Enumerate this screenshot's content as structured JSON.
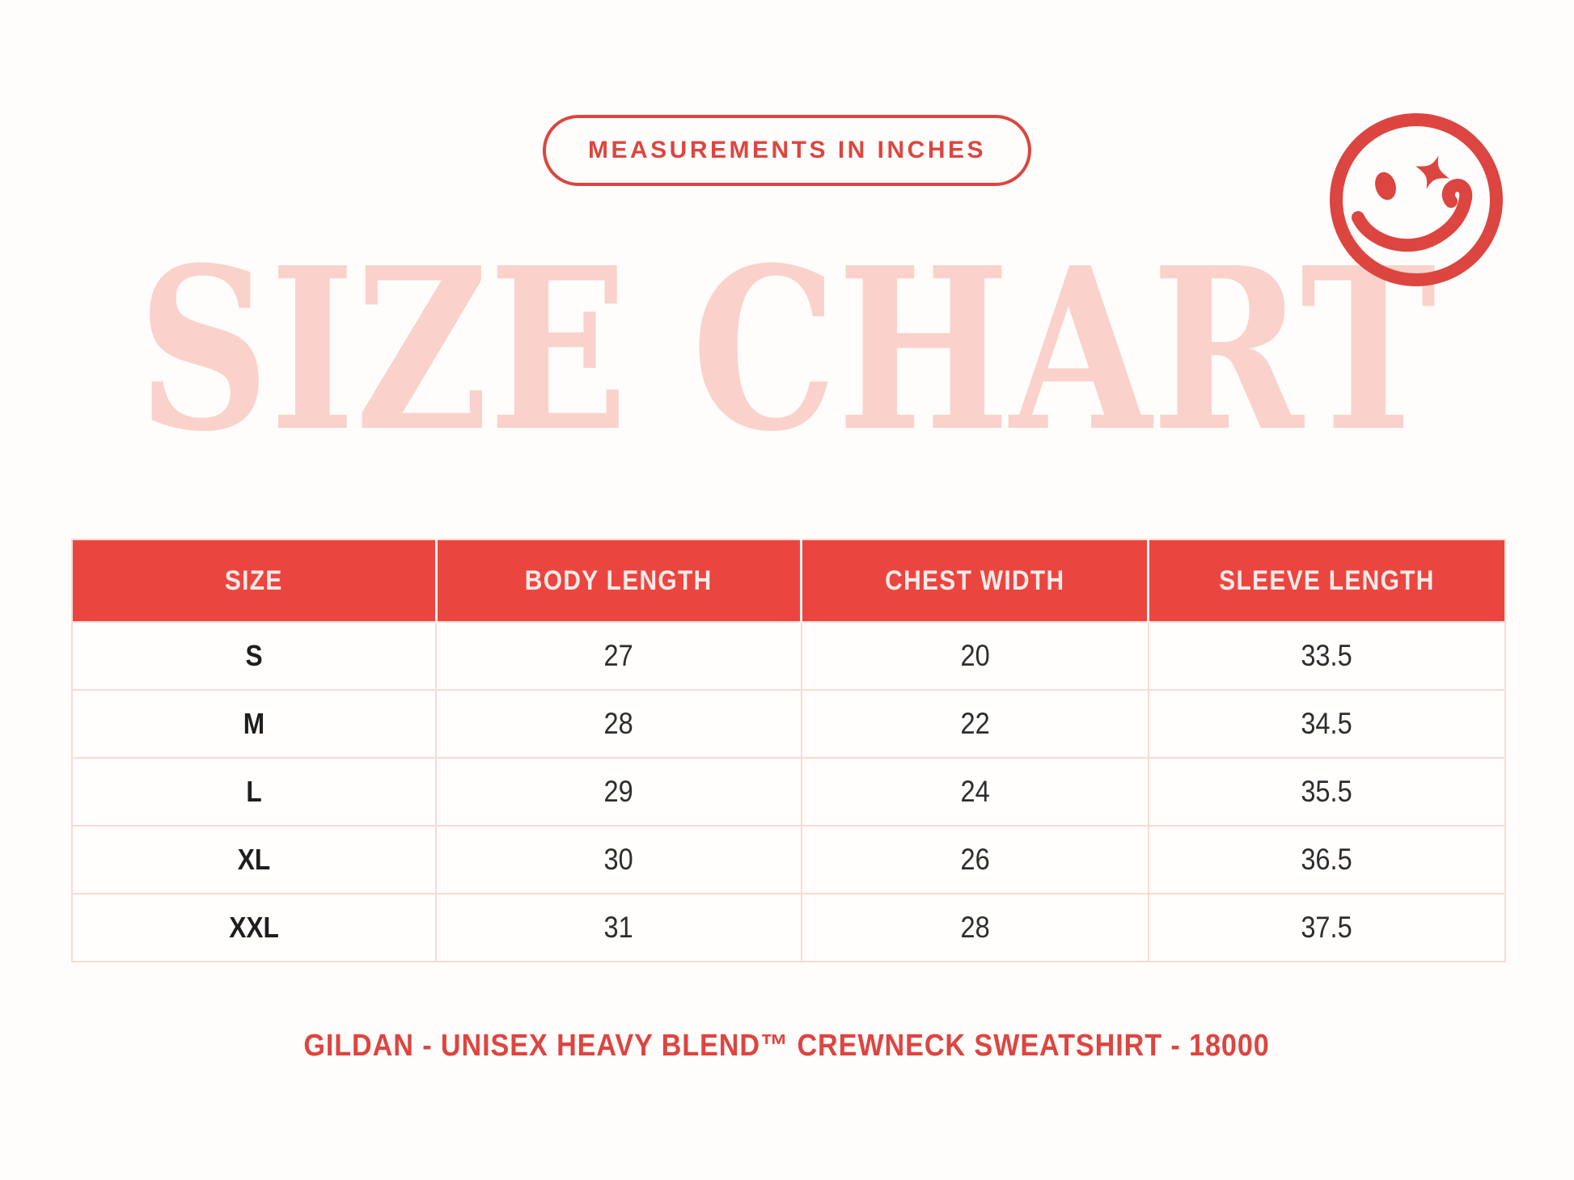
{
  "badge": {
    "label": "MEASUREMENTS IN INCHES"
  },
  "title": {
    "text": "SIZE CHART"
  },
  "icons": {
    "smiley": "winking-smiley-face-with-sparkle-eye"
  },
  "chart_data": {
    "type": "table",
    "title": "SIZE CHART",
    "units_note": "MEASUREMENTS IN INCHES",
    "columns": [
      "SIZE",
      "BODY LENGTH",
      "CHEST WIDTH",
      "SLEEVE LENGTH"
    ],
    "rows": [
      [
        "S",
        "27",
        "20",
        "33.5"
      ],
      [
        "M",
        "28",
        "22",
        "34.5"
      ],
      [
        "L",
        "29",
        "24",
        "35.5"
      ],
      [
        "XL",
        "30",
        "26",
        "36.5"
      ],
      [
        "XXL",
        "31",
        "28",
        "37.5"
      ]
    ]
  },
  "footer": {
    "text": "GILDAN - UNISEX HEAVY BLEND™ CREWNECK SWEATSHIRT - 18000"
  },
  "colors": {
    "accent_red": "#DD4540",
    "header_red": "#EB4540",
    "title_pink": "#FAD2CB",
    "border_pink": "#F8DBD4",
    "cell_text": "#2D2D2D",
    "background": "#FFFDFB"
  }
}
